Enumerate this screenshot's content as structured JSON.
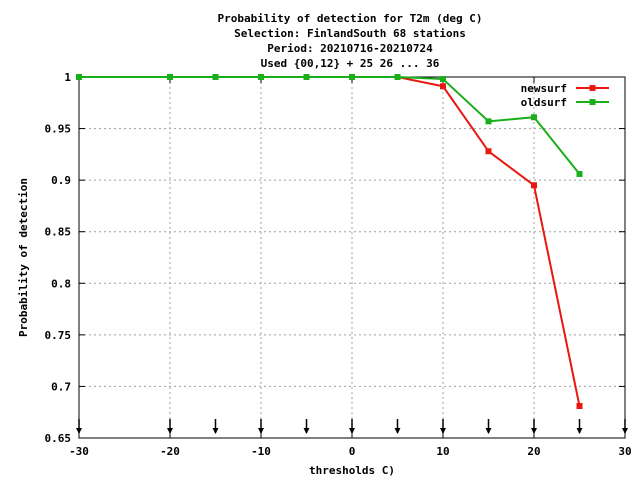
{
  "chart_data": {
    "type": "line",
    "title_lines": [
      "Probability of detection  for T2m (deg C)",
      "Selection: FinlandSouth     68 stations",
      "Period: 20210716-20210724",
      "Used {00,12} + 25 26 ... 36"
    ],
    "xlabel": "thresholds C)",
    "ylabel": "Probability of detection",
    "xlim": [
      -30,
      30
    ],
    "ylim": [
      0.65,
      1.0
    ],
    "xticks": [
      -30,
      -20,
      -10,
      0,
      10,
      20,
      30
    ],
    "xtick_labels": [
      "-30",
      "-20",
      "-10",
      "0",
      "10",
      "20",
      "30"
    ],
    "yticks": [
      0.65,
      0.7,
      0.75,
      0.8,
      0.85,
      0.9,
      0.95,
      1.0
    ],
    "ytick_labels": [
      "0.65",
      "0.7",
      "0.75",
      "0.8",
      "0.85",
      "0.9",
      "0.95",
      "1"
    ],
    "grid": true,
    "legend_position": "top-right",
    "arrow_markers_x": [
      -30,
      -20,
      -15,
      -10,
      -5,
      0,
      5,
      10,
      15,
      20,
      25,
      30
    ],
    "series": [
      {
        "name": "newsurf",
        "color": "#e8170f",
        "x": [
          -30,
          -20,
          -15,
          -10,
          -5,
          0,
          5,
          10,
          15,
          20,
          25
        ],
        "y": [
          1.0,
          1.0,
          1.0,
          1.0,
          1.0,
          1.0,
          1.0,
          0.991,
          0.928,
          0.895,
          0.681
        ]
      },
      {
        "name": "oldsurf",
        "color": "#1aaf1a",
        "x": [
          -30,
          -20,
          -15,
          -10,
          -5,
          0,
          5,
          10,
          15,
          20,
          25
        ],
        "y": [
          1.0,
          1.0,
          1.0,
          1.0,
          1.0,
          1.0,
          1.0,
          0.998,
          0.957,
          0.961,
          0.906
        ]
      }
    ]
  }
}
